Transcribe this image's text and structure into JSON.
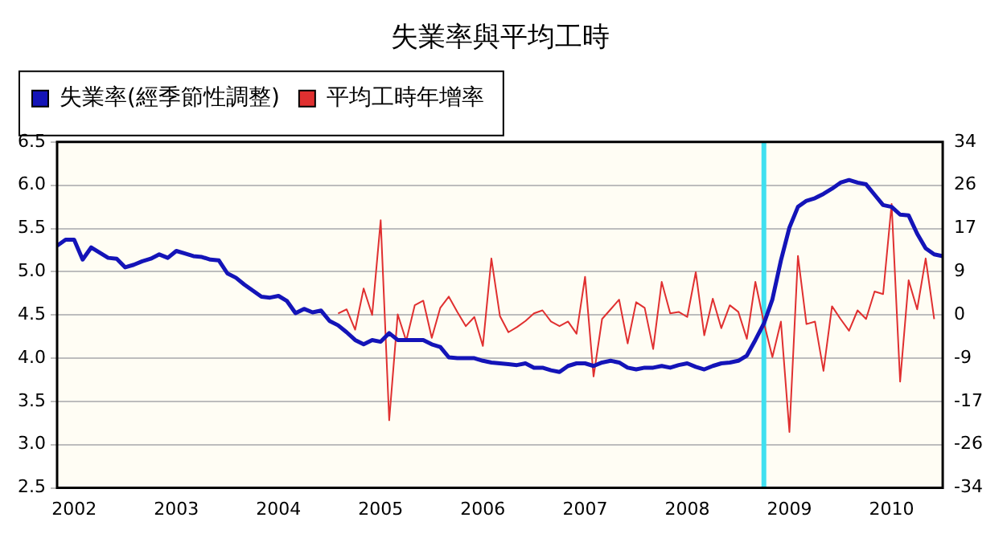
{
  "chart_data": {
    "type": "line",
    "title": "失業率與平均工時",
    "legend": "top left",
    "grid": "y",
    "marker": "none",
    "line_style": "solid",
    "x": [
      "2001-11",
      "2001-12",
      "2002-01",
      "2002-02",
      "2002-03",
      "2002-04",
      "2002-05",
      "2002-06",
      "2002-07",
      "2002-08",
      "2002-09",
      "2002-10",
      "2002-11",
      "2002-12",
      "2003-01",
      "2003-02",
      "2003-03",
      "2003-04",
      "2003-05",
      "2003-06",
      "2003-07",
      "2003-08",
      "2003-09",
      "2003-10",
      "2003-11",
      "2003-12",
      "2004-01",
      "2004-02",
      "2004-03",
      "2004-04",
      "2004-05",
      "2004-06",
      "2004-07",
      "2004-08",
      "2004-09",
      "2004-10",
      "2004-11",
      "2004-12",
      "2005-01",
      "2005-02",
      "2005-03",
      "2005-04",
      "2005-05",
      "2005-06",
      "2005-07",
      "2005-08",
      "2005-09",
      "2005-10",
      "2005-11",
      "2005-12",
      "2006-01",
      "2006-02",
      "2006-03",
      "2006-04",
      "2006-05",
      "2006-06",
      "2006-07",
      "2006-08",
      "2006-09",
      "2006-10",
      "2006-11",
      "2006-12",
      "2007-01",
      "2007-02",
      "2007-03",
      "2007-04",
      "2007-05",
      "2007-06",
      "2007-07",
      "2007-08",
      "2007-09",
      "2007-10",
      "2007-11",
      "2007-12",
      "2008-01",
      "2008-02",
      "2008-03",
      "2008-04",
      "2008-05",
      "2008-06",
      "2008-07",
      "2008-08",
      "2008-09",
      "2008-10",
      "2008-11",
      "2008-12",
      "2009-01",
      "2009-02",
      "2009-03",
      "2009-04",
      "2009-05",
      "2009-06",
      "2009-07",
      "2009-08",
      "2009-09",
      "2009-10",
      "2009-11",
      "2009-12",
      "2010-01",
      "2010-02",
      "2010-03",
      "2010-04",
      "2010-05",
      "2010-06",
      "2010-07"
    ],
    "series": [
      {
        "name": "失業率(經季節性調整)",
        "color": "#1414b8",
        "values": [
          5.3,
          5.37,
          5.37,
          5.14,
          5.28,
          5.22,
          5.16,
          5.15,
          5.05,
          5.08,
          5.12,
          5.15,
          5.2,
          5.16,
          5.24,
          5.21,
          5.18,
          5.17,
          5.14,
          5.13,
          4.98,
          4.93,
          4.85,
          4.78,
          4.71,
          4.7,
          4.72,
          4.66,
          4.52,
          4.57,
          4.53,
          4.55,
          4.43,
          4.38,
          4.3,
          4.21,
          4.16,
          4.21,
          4.19,
          4.29,
          4.21,
          4.21,
          4.21,
          4.21,
          4.16,
          4.13,
          4.01,
          4.0,
          4.0,
          4.0,
          3.97,
          3.95,
          3.94,
          3.93,
          3.92,
          3.94,
          3.89,
          3.89,
          3.86,
          3.84,
          3.91,
          3.94,
          3.94,
          3.91,
          3.95,
          3.97,
          3.95,
          3.89,
          3.87,
          3.89,
          3.89,
          3.91,
          3.89,
          3.92,
          3.94,
          3.9,
          3.87,
          3.91,
          3.94,
          3.95,
          3.97,
          4.03,
          4.21,
          4.4,
          4.68,
          5.13,
          5.51,
          5.75,
          5.82,
          5.85,
          5.9,
          5.96,
          6.03,
          6.06,
          6.03,
          6.01,
          5.89,
          5.77,
          5.75,
          5.66,
          5.65,
          5.44,
          5.27,
          5.2,
          5.18
        ]
      },
      {
        "name": "平均工時年增率",
        "color": "#e03030",
        "axis": "y2",
        "values": [
          null,
          null,
          null,
          null,
          null,
          null,
          null,
          null,
          null,
          null,
          null,
          null,
          null,
          null,
          null,
          null,
          null,
          null,
          null,
          null,
          null,
          null,
          null,
          null,
          null,
          null,
          null,
          null,
          null,
          null,
          null,
          null,
          null,
          0.3,
          1.1,
          -2.9,
          5.2,
          0,
          18.6,
          -20.7,
          0.1,
          -5.1,
          1.9,
          2.8,
          -4.5,
          1.4,
          3.6,
          0.6,
          -2.2,
          -0.4,
          -6.1,
          11.1,
          -0.2,
          -3.4,
          -2.4,
          -1.2,
          0.3,
          0.9,
          -1.3,
          -2.2,
          -1.3,
          -3.7,
          7.5,
          -12.1,
          -0.8,
          1.1,
          3.0,
          -5.6,
          2.5,
          1.4,
          -6.7,
          6.5,
          0.3,
          0.6,
          -0.4,
          8.4,
          -4.0,
          3.2,
          -2.6,
          1.9,
          0.6,
          -4.7,
          6.5,
          -1.5,
          -8.3,
          -1.3,
          -23.0,
          11.6,
          -1.8,
          -1.3,
          -11.0,
          1.7,
          -0.8,
          -3.1,
          0.9,
          -0.8,
          4.6,
          4.1,
          21.8,
          -13.1,
          6.8,
          1.1,
          11.1,
          -0.8,
          null
        ]
      }
    ],
    "xlim": [
      "2001-11",
      "2010-07"
    ],
    "xticks": [
      "2002",
      "2003",
      "2004",
      "2005",
      "2006",
      "2007",
      "2008",
      "2009",
      "2010"
    ],
    "ylim": [
      2.5,
      6.5
    ],
    "yticks": [
      2.5,
      {
        "value": 3,
        "label": "3.0"
      },
      3.5,
      {
        "value": 4,
        "label": "4.0"
      },
      4.5,
      {
        "value": 5,
        "label": "5.0"
      },
      5.5,
      {
        "value": 6,
        "label": "6.0"
      },
      6.5
    ],
    "y2lim": [
      -34,
      34
    ],
    "y2ticks": [
      -34,
      {
        "value": -25.5,
        "label": "-26"
      },
      -17,
      {
        "value": -8.5,
        "label": "-9"
      },
      0,
      {
        "value": 8.5,
        "label": "9"
      },
      17,
      {
        "value": 25.5,
        "label": "26"
      },
      34
    ],
    "ref_lines": [
      {
        "axis": "x",
        "value": "2008-10",
        "color": "#40e0f0"
      }
    ]
  }
}
